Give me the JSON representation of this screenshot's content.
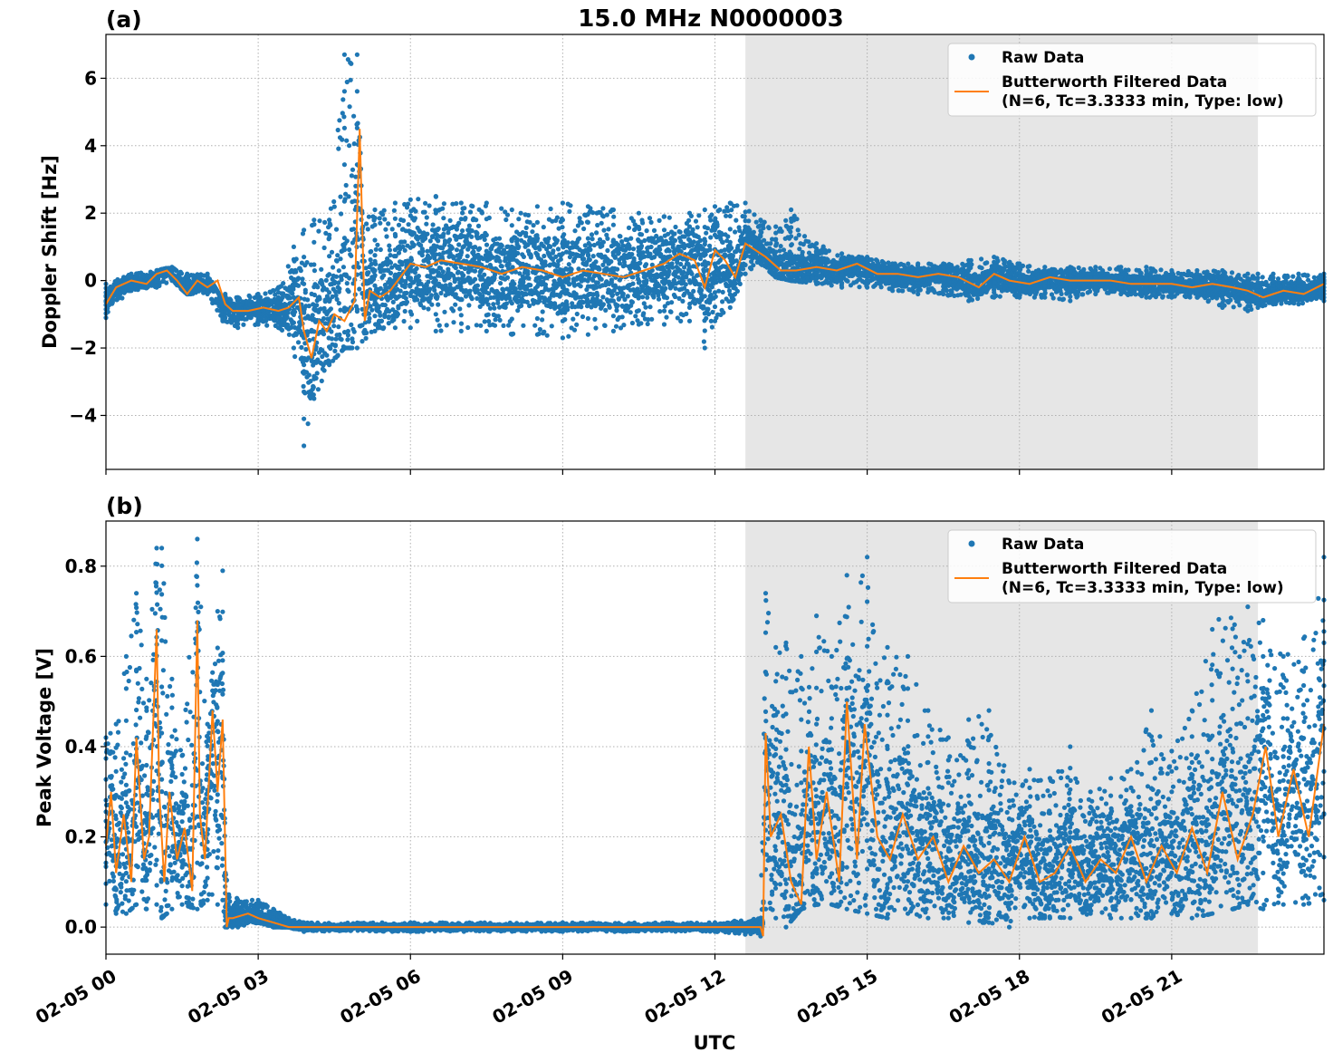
{
  "figure": {
    "title": "15.0 MHz N0000003",
    "xlabel": "UTC"
  },
  "colors": {
    "raw": "#1f77b4",
    "filtered": "#ff7f0e",
    "shade": "#e6e6e6"
  },
  "chart_data": [
    {
      "type": "scatter",
      "panel_label": "(a)",
      "title": "15.0 MHz N0000003",
      "xlabel": "",
      "ylabel": "Doppler Shift [Hz]",
      "xlim": [
        "2023-02-05 00:00",
        "2023-02-05 24:00"
      ],
      "ylim": [
        -5.6,
        7.3
      ],
      "yticks": [
        -4,
        -2,
        0,
        2,
        4,
        6
      ],
      "ytick_labels": [
        "−4",
        "−2",
        "0",
        "2",
        "4",
        "6"
      ],
      "xtick_hours": [
        0,
        3,
        6,
        9,
        12,
        15,
        18,
        21
      ],
      "xtick_labels": [
        "02-05 00",
        "02-05 03",
        "02-05 06",
        "02-05 09",
        "02-05 12",
        "02-05 15",
        "02-05 18",
        "02-05 21"
      ],
      "show_xtick_labels": false,
      "grid": true,
      "legend_position": "top-right",
      "shaded_interval_hours": [
        12.6,
        22.7
      ],
      "series": [
        {
          "name": "Raw Data",
          "kind": "points",
          "center_hours": [
            0,
            0.5,
            1,
            1.3,
            1.6,
            2.0,
            2.3,
            2.35,
            2.6,
            3.0,
            3.4,
            3.7,
            3.9,
            4.1,
            4.4,
            4.7,
            4.95,
            5.05,
            5.3,
            5.7,
            6.0,
            6.5,
            7.0,
            7.5,
            8.0,
            8.5,
            9.0,
            9.5,
            10.0,
            10.5,
            11.0,
            11.5,
            11.8,
            12.0,
            12.3,
            12.6,
            12.9,
            13.2,
            13.5,
            14.0,
            14.5,
            15.0,
            15.5,
            16.0,
            16.5,
            17.0,
            17.5,
            18.0,
            18.5,
            19.0,
            19.5,
            20.0,
            20.5,
            21.0,
            21.5,
            22.0,
            22.5,
            22.7,
            23.0,
            23.5,
            24.0
          ],
          "spread_min": [
            -1.1,
            -0.3,
            -0.2,
            0.0,
            -0.4,
            -0.4,
            -1.2,
            -1.2,
            -1.4,
            -1.3,
            -1.4,
            -2.0,
            -4.9,
            -3.5,
            -2.5,
            -2.0,
            -2.0,
            -1.8,
            -1.5,
            -1.4,
            -1.4,
            -1.5,
            -1.5,
            -1.5,
            -1.6,
            -1.6,
            -1.7,
            -1.6,
            -1.5,
            -1.3,
            -1.3,
            -1.2,
            -2.0,
            -1.2,
            -0.8,
            0.2,
            0.5,
            0.1,
            0.0,
            -0.1,
            -0.2,
            -0.2,
            -0.3,
            -0.4,
            -0.4,
            -0.6,
            -0.5,
            -0.5,
            -0.5,
            -0.6,
            -0.4,
            -0.4,
            -0.5,
            -0.5,
            -0.5,
            -0.8,
            -0.9,
            -0.8,
            -0.7,
            -0.7,
            -0.6
          ],
          "spread_max": [
            -0.1,
            0.2,
            0.3,
            0.4,
            0.2,
            0.2,
            -0.6,
            -0.4,
            -0.5,
            -0.4,
            -0.2,
            1.0,
            1.5,
            1.8,
            1.8,
            6.7,
            6.7,
            2.0,
            2.1,
            2.3,
            2.4,
            2.5,
            2.3,
            2.3,
            2.1,
            2.2,
            2.3,
            2.2,
            2.1,
            2.0,
            1.9,
            2.0,
            2.1,
            2.2,
            2.3,
            2.3,
            1.8,
            1.6,
            2.1,
            1.1,
            0.8,
            0.7,
            0.5,
            0.5,
            0.5,
            0.6,
            0.7,
            0.5,
            0.4,
            0.4,
            0.4,
            0.4,
            0.4,
            0.3,
            0.3,
            0.3,
            0.2,
            0.2,
            0.2,
            0.2,
            0.2
          ]
        },
        {
          "name": "Butterworth Filtered Data\n(N=6, Tc=3.3333 min, Type: low)",
          "kind": "line",
          "x_hours": [
            0,
            0.2,
            0.5,
            0.8,
            1.0,
            1.2,
            1.4,
            1.6,
            1.8,
            2.0,
            2.2,
            2.35,
            2.5,
            2.8,
            3.1,
            3.4,
            3.6,
            3.8,
            3.9,
            4.05,
            4.2,
            4.35,
            4.5,
            4.7,
            4.9,
            5.0,
            5.1,
            5.2,
            5.4,
            5.6,
            5.8,
            6.0,
            6.3,
            6.6,
            7.0,
            7.4,
            7.8,
            8.2,
            8.6,
            9.0,
            9.4,
            9.8,
            10.2,
            10.6,
            11.0,
            11.3,
            11.6,
            11.8,
            12.0,
            12.2,
            12.4,
            12.6,
            12.8,
            13.0,
            13.3,
            13.6,
            14.0,
            14.4,
            14.8,
            15.2,
            15.6,
            16.0,
            16.4,
            16.8,
            17.2,
            17.5,
            17.8,
            18.2,
            18.6,
            19.0,
            19.4,
            19.8,
            20.2,
            20.6,
            21.0,
            21.4,
            21.8,
            22.2,
            22.5,
            22.8,
            23.2,
            23.6,
            24.0
          ],
          "y": [
            -0.7,
            -0.2,
            0.0,
            -0.1,
            0.2,
            0.3,
            0.0,
            -0.4,
            0.0,
            -0.2,
            0.0,
            -0.7,
            -0.9,
            -0.9,
            -0.8,
            -0.9,
            -0.8,
            -0.5,
            -1.5,
            -2.3,
            -1.2,
            -1.5,
            -1.0,
            -1.2,
            -0.6,
            4.5,
            -1.2,
            -0.3,
            -0.5,
            -0.3,
            0.1,
            0.5,
            0.4,
            0.6,
            0.5,
            0.4,
            0.2,
            0.4,
            0.3,
            0.1,
            0.3,
            0.2,
            0.1,
            0.3,
            0.5,
            0.8,
            0.6,
            -0.2,
            0.9,
            0.6,
            0.1,
            1.1,
            0.9,
            0.7,
            0.3,
            0.3,
            0.4,
            0.3,
            0.5,
            0.2,
            0.2,
            0.1,
            0.2,
            0.1,
            -0.2,
            0.2,
            0.0,
            -0.1,
            0.1,
            0.0,
            0.0,
            0.0,
            -0.1,
            -0.1,
            -0.1,
            -0.2,
            -0.1,
            -0.2,
            -0.3,
            -0.5,
            -0.3,
            -0.4,
            -0.1
          ]
        }
      ]
    },
    {
      "type": "scatter",
      "panel_label": "(b)",
      "title": "",
      "xlabel": "UTC",
      "ylabel": "Peak Voltage [V]",
      "xlim": [
        "2023-02-05 00:00",
        "2023-02-05 24:00"
      ],
      "ylim": [
        -0.06,
        0.9
      ],
      "yticks": [
        0.0,
        0.2,
        0.4,
        0.6,
        0.8
      ],
      "ytick_labels": [
        "0.0",
        "0.2",
        "0.4",
        "0.6",
        "0.8"
      ],
      "xtick_hours": [
        0,
        3,
        6,
        9,
        12,
        15,
        18,
        21
      ],
      "xtick_labels": [
        "02-05 00",
        "02-05 03",
        "02-05 06",
        "02-05 09",
        "02-05 12",
        "02-05 15",
        "02-05 18",
        "02-05 21"
      ],
      "show_xtick_labels": true,
      "grid": true,
      "legend_position": "top-right",
      "shaded_interval_hours": [
        12.6,
        22.7
      ],
      "series": [
        {
          "name": "Raw Data",
          "kind": "points",
          "center_hours": [
            0,
            0.2,
            0.4,
            0.6,
            0.8,
            1.0,
            1.1,
            1.3,
            1.5,
            1.8,
            2.0,
            2.2,
            2.3,
            2.35,
            2.6,
            3.0,
            3.3,
            3.6,
            3.9,
            6.0,
            9.0,
            12.0,
            12.9,
            13.0,
            13.2,
            13.4,
            13.7,
            14.0,
            14.3,
            14.6,
            15.0,
            15.4,
            15.8,
            16.2,
            16.6,
            17.0,
            17.4,
            17.8,
            18.2,
            18.6,
            19.0,
            19.4,
            19.8,
            20.2,
            20.6,
            21.0,
            21.4,
            21.8,
            22.2,
            22.5,
            22.8,
            23.2,
            23.6,
            24.0
          ],
          "spread_min": [
            0.05,
            0.03,
            0.03,
            0.05,
            0.04,
            0.05,
            0.02,
            0.04,
            0.05,
            0.04,
            0.06,
            0.05,
            0.06,
            0.0,
            0.0,
            0.01,
            0.0,
            0.0,
            -0.01,
            -0.01,
            -0.01,
            -0.01,
            -0.02,
            0.04,
            0.02,
            0.0,
            0.04,
            0.05,
            0.05,
            0.04,
            0.03,
            0.02,
            0.03,
            0.02,
            0.02,
            0.01,
            0.01,
            0.0,
            0.02,
            0.02,
            0.02,
            0.03,
            0.02,
            0.02,
            0.02,
            0.03,
            0.02,
            0.03,
            0.04,
            0.05,
            0.04,
            0.05,
            0.05,
            0.06
          ],
          "spread_max": [
            0.42,
            0.45,
            0.6,
            0.74,
            0.55,
            0.84,
            0.84,
            0.55,
            0.38,
            0.86,
            0.45,
            0.7,
            0.79,
            0.12,
            0.06,
            0.06,
            0.04,
            0.02,
            0.01,
            0.01,
            0.01,
            0.01,
            0.02,
            0.74,
            0.62,
            0.63,
            0.6,
            0.69,
            0.6,
            0.78,
            0.82,
            0.62,
            0.6,
            0.48,
            0.42,
            0.46,
            0.48,
            0.32,
            0.35,
            0.33,
            0.4,
            0.3,
            0.33,
            0.35,
            0.48,
            0.39,
            0.48,
            0.66,
            0.75,
            0.71,
            0.68,
            0.6,
            0.64,
            0.82
          ]
        },
        {
          "name": "Butterworth Filtered Data\n(N=6, Tc=3.3333 min, Type: low)",
          "kind": "line",
          "x_hours": [
            0,
            0.1,
            0.2,
            0.35,
            0.5,
            0.6,
            0.75,
            0.85,
            1.0,
            1.05,
            1.15,
            1.25,
            1.4,
            1.55,
            1.7,
            1.8,
            1.85,
            1.95,
            2.1,
            2.2,
            2.3,
            2.38,
            2.42,
            2.5,
            2.8,
            3.0,
            3.3,
            3.6,
            3.9,
            6.0,
            9.0,
            12.0,
            12.6,
            12.9,
            12.95,
            13.0,
            13.1,
            13.3,
            13.5,
            13.7,
            13.85,
            14.0,
            14.2,
            14.45,
            14.6,
            14.8,
            14.95,
            15.2,
            15.45,
            15.7,
            16.0,
            16.3,
            16.6,
            16.9,
            17.2,
            17.5,
            17.8,
            18.1,
            18.4,
            18.7,
            19.0,
            19.3,
            19.6,
            19.9,
            20.2,
            20.5,
            20.8,
            21.1,
            21.4,
            21.7,
            22.0,
            22.3,
            22.6,
            22.85,
            23.1,
            23.4,
            23.7,
            24.0
          ],
          "y": [
            0.18,
            0.3,
            0.12,
            0.25,
            0.1,
            0.42,
            0.15,
            0.2,
            0.66,
            0.3,
            0.1,
            0.3,
            0.15,
            0.22,
            0.08,
            0.68,
            0.25,
            0.15,
            0.48,
            0.3,
            0.46,
            0.0,
            0.02,
            0.02,
            0.03,
            0.02,
            0.01,
            0.0,
            0.0,
            0.0,
            0.0,
            0.0,
            0.0,
            0.0,
            -0.02,
            0.43,
            0.2,
            0.25,
            0.1,
            0.05,
            0.4,
            0.15,
            0.3,
            0.1,
            0.5,
            0.15,
            0.45,
            0.2,
            0.15,
            0.25,
            0.15,
            0.2,
            0.1,
            0.18,
            0.12,
            0.15,
            0.1,
            0.2,
            0.1,
            0.12,
            0.18,
            0.1,
            0.15,
            0.12,
            0.2,
            0.1,
            0.18,
            0.12,
            0.22,
            0.12,
            0.3,
            0.15,
            0.25,
            0.4,
            0.2,
            0.35,
            0.2,
            0.45
          ]
        }
      ]
    }
  ]
}
